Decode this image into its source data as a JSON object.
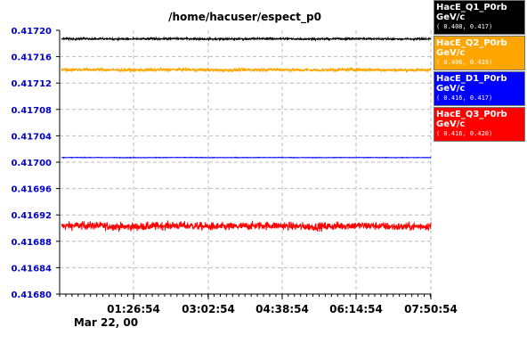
{
  "chart_data": {
    "type": "line",
    "title": "/home/hacuser/espect_p0",
    "xlabel": "",
    "ylabel": "",
    "x_date_label": "Mar 22, 00",
    "x_range": [
      "00:00:00",
      "08:25:00"
    ],
    "xticks": [
      "01:26:54",
      "03:02:54",
      "04:38:54",
      "06:14:54",
      "07:50:54"
    ],
    "ylim": [
      0.4168,
      0.4172
    ],
    "yticks": [
      "0.41680",
      "0.41684",
      "0.41688",
      "0.41692",
      "0.41696",
      "0.41700",
      "0.41704",
      "0.41708",
      "0.41712",
      "0.41716",
      "0.41720"
    ],
    "grid": true,
    "legend_position": "right",
    "series": [
      {
        "name": "HacE_Q1_P0rb",
        "unit": "GeV/c",
        "range": "( 0.408, 0.417)",
        "color": "#000000",
        "center": 0.417187,
        "noise": 1.4e-06
      },
      {
        "name": "HacE_Q2_P0rb",
        "unit": "GeV/c",
        "range": "( 0.406, 0.419)",
        "color": "#ffa500",
        "center": 0.41714,
        "noise": 2.5e-06
      },
      {
        "name": "HacE_D1_P0rb",
        "unit": "GeV/c",
        "range": "( 0.416, 0.417)",
        "color": "#0000ff",
        "center": 0.417007,
        "noise": 4e-07
      },
      {
        "name": "HacE_Q3_P0rb",
        "unit": "GeV/c",
        "range": "( 0.416, 0.420)",
        "color": "#ff0000",
        "center": 0.416903,
        "noise": 6e-06
      }
    ]
  }
}
